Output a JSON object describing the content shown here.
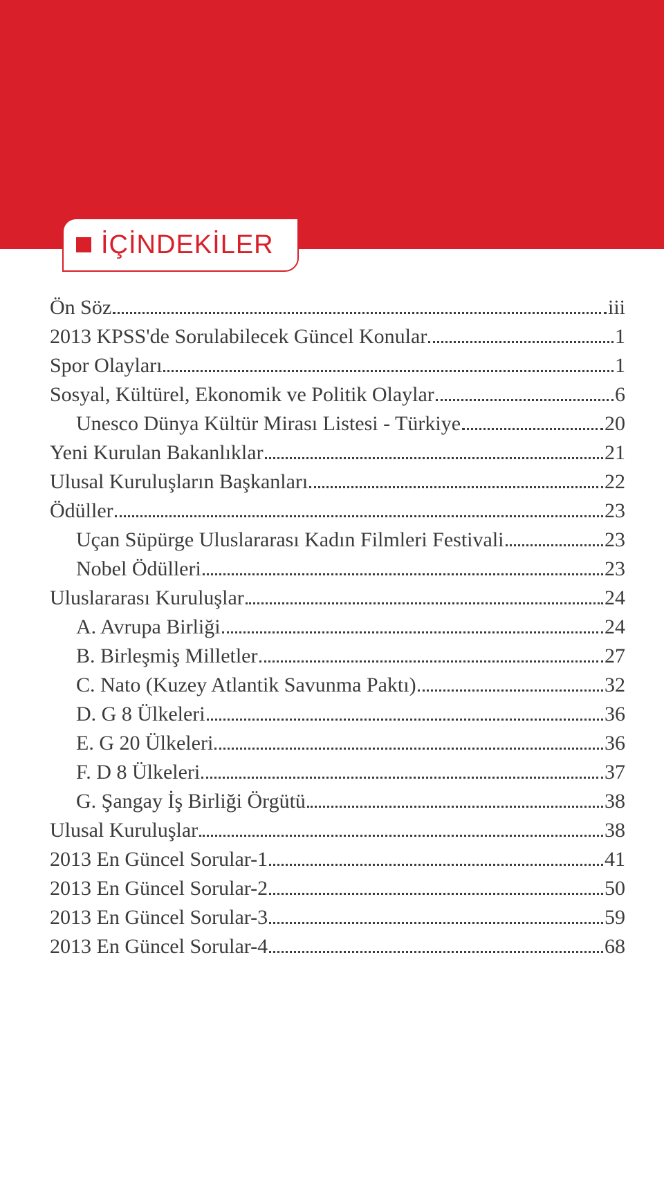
{
  "colors": {
    "banner": "#d81f2a",
    "page_bg": "#ffffff",
    "text": "#3b3b3b",
    "leader": "#3b3b3b"
  },
  "typography": {
    "body_font": "cursive (Comic Sans style)",
    "header_font": "Arial",
    "body_fontsize_pt": 22,
    "header_fontsize_pt": 28
  },
  "header": {
    "title": "İÇİNDEKİLER"
  },
  "toc": [
    {
      "label": "Ön Söz",
      "page": "iii",
      "indent": 0
    },
    {
      "label": "2013 KPSS'de Sorulabilecek Güncel Konular",
      "page": "1",
      "indent": 0
    },
    {
      "label": "Spor Olayları",
      "page": "1",
      "indent": 0
    },
    {
      "label": "Sosyal, Kültürel, Ekonomik ve Politik Olaylar",
      "page": "6",
      "indent": 0
    },
    {
      "label": "Unesco Dünya Kültür Mirası Listesi - Türkiye",
      "page": "20",
      "indent": 1
    },
    {
      "label": "Yeni Kurulan Bakanlıklar",
      "page": "21",
      "indent": 0
    },
    {
      "label": "Ulusal Kuruluşların Başkanları",
      "page": "22",
      "indent": 0
    },
    {
      "label": "Ödüller",
      "page": "23",
      "indent": 0
    },
    {
      "label": "Uçan Süpürge Uluslararası Kadın Filmleri Festivali",
      "page": "23",
      "indent": 1
    },
    {
      "label": "Nobel Ödülleri",
      "page": "23",
      "indent": 1
    },
    {
      "label": "Uluslararası Kuruluşlar",
      "page": "24",
      "indent": 0
    },
    {
      "label": "A. Avrupa Birliği",
      "page": "24",
      "indent": 1
    },
    {
      "label": "B. Birleşmiş Milletler",
      "page": "27",
      "indent": 1
    },
    {
      "label": "C. Nato (Kuzey Atlantik Savunma Paktı)",
      "page": "32",
      "indent": 1
    },
    {
      "label": "D. G 8 Ülkeleri",
      "page": "36",
      "indent": 1
    },
    {
      "label": "E. G 20 Ülkeleri",
      "page": "36",
      "indent": 1
    },
    {
      "label": "F. D 8 Ülkeleri",
      "page": "37",
      "indent": 1
    },
    {
      "label": "G. Şangay İş Birliği Örgütü",
      "page": "38",
      "indent": 1
    },
    {
      "label": "Ulusal Kuruluşlar",
      "page": "38",
      "indent": 0
    },
    {
      "label": "2013 En Güncel Sorular-1",
      "page": "41",
      "indent": 0
    },
    {
      "label": "2013 En Güncel Sorular-2",
      "page": "50",
      "indent": 0
    },
    {
      "label": "2013 En Güncel Sorular-3",
      "page": "59",
      "indent": 0
    },
    {
      "label": "2013 En Güncel Sorular-4",
      "page": "68",
      "indent": 0
    }
  ]
}
